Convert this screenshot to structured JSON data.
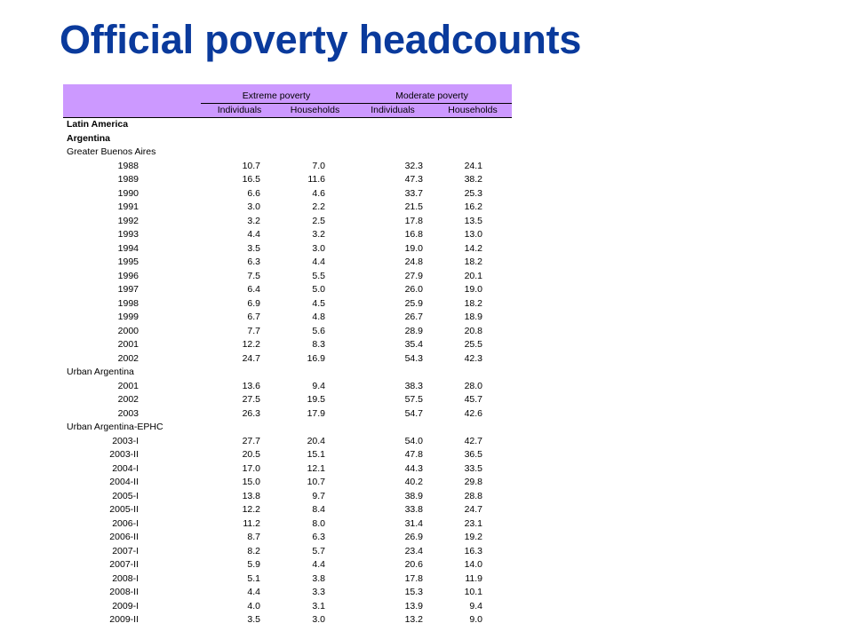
{
  "title": "Official poverty headcounts",
  "table": {
    "group_headers": [
      "Extreme poverty",
      "Moderate poverty"
    ],
    "sub_headers": [
      "Individuals",
      "Households",
      "Individuals",
      "Households"
    ],
    "section_labels": {
      "region": "Latin America",
      "country": "Argentina"
    },
    "groups": [
      {
        "label": "Greater Buenos Aires",
        "rows": [
          [
            "1988",
            "10.7",
            "7.0",
            "32.3",
            "24.1"
          ],
          [
            "1989",
            "16.5",
            "11.6",
            "47.3",
            "38.2"
          ],
          [
            "1990",
            "6.6",
            "4.6",
            "33.7",
            "25.3"
          ],
          [
            "1991",
            "3.0",
            "2.2",
            "21.5",
            "16.2"
          ],
          [
            "1992",
            "3.2",
            "2.5",
            "17.8",
            "13.5"
          ],
          [
            "1993",
            "4.4",
            "3.2",
            "16.8",
            "13.0"
          ],
          [
            "1994",
            "3.5",
            "3.0",
            "19.0",
            "14.2"
          ],
          [
            "1995",
            "6.3",
            "4.4",
            "24.8",
            "18.2"
          ],
          [
            "1996",
            "7.5",
            "5.5",
            "27.9",
            "20.1"
          ],
          [
            "1997",
            "6.4",
            "5.0",
            "26.0",
            "19.0"
          ],
          [
            "1998",
            "6.9",
            "4.5",
            "25.9",
            "18.2"
          ],
          [
            "1999",
            "6.7",
            "4.8",
            "26.7",
            "18.9"
          ],
          [
            "2000",
            "7.7",
            "5.6",
            "28.9",
            "20.8"
          ],
          [
            "2001",
            "12.2",
            "8.3",
            "35.4",
            "25.5"
          ],
          [
            "2002",
            "24.7",
            "16.9",
            "54.3",
            "42.3"
          ]
        ]
      },
      {
        "label": "Urban Argentina",
        "rows": [
          [
            "2001",
            "13.6",
            "9.4",
            "38.3",
            "28.0"
          ],
          [
            "2002",
            "27.5",
            "19.5",
            "57.5",
            "45.7"
          ],
          [
            "2003",
            "26.3",
            "17.9",
            "54.7",
            "42.6"
          ]
        ]
      },
      {
        "label": "Urban Argentina-EPHC",
        "rows": [
          [
            "2003-I",
            "27.7",
            "20.4",
            "54.0",
            "42.7"
          ],
          [
            "2003-II",
            "20.5",
            "15.1",
            "47.8",
            "36.5"
          ],
          [
            "2004-I",
            "17.0",
            "12.1",
            "44.3",
            "33.5"
          ],
          [
            "2004-II",
            "15.0",
            "10.7",
            "40.2",
            "29.8"
          ],
          [
            "2005-I",
            "13.8",
            "9.7",
            "38.9",
            "28.8"
          ],
          [
            "2005-II",
            "12.2",
            "8.4",
            "33.8",
            "24.7"
          ],
          [
            "2006-I",
            "11.2",
            "8.0",
            "31.4",
            "23.1"
          ],
          [
            "2006-II",
            "8.7",
            "6.3",
            "26.9",
            "19.2"
          ],
          [
            "2007-I",
            "8.2",
            "5.7",
            "23.4",
            "16.3"
          ],
          [
            "2007-II",
            "5.9",
            "4.4",
            "20.6",
            "14.0"
          ],
          [
            "2008-I",
            "5.1",
            "3.8",
            "17.8",
            "11.9"
          ],
          [
            "2008-II",
            "4.4",
            "3.3",
            "15.3",
            "10.1"
          ],
          [
            "2009-I",
            "4.0",
            "3.1",
            "13.9",
            "9.4"
          ],
          [
            "2009-II",
            "3.5",
            "3.0",
            "13.2",
            "9.0"
          ]
        ]
      }
    ]
  }
}
